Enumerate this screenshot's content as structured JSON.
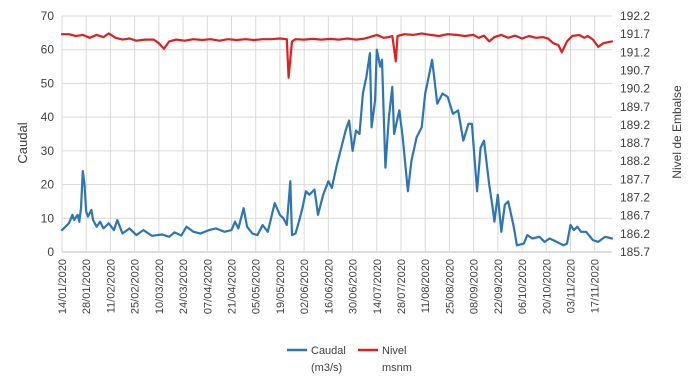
{
  "chart_data": {
    "type": "line",
    "title": "",
    "ylabel": "Caudal",
    "y2label": "Nivel de Embalse",
    "xlabel": "",
    "ylim": [
      0,
      70
    ],
    "y2lim": [
      185.7,
      192.2
    ],
    "yticks": [
      0,
      10,
      20,
      30,
      40,
      50,
      60,
      70
    ],
    "y2ticks": [
      "185.7",
      "186.2",
      "186.7",
      "187.2",
      "187.7",
      "188.2",
      "188.7",
      "189.2",
      "189.7",
      "190.2",
      "190.7",
      "191.2",
      "191.7",
      "192.2"
    ],
    "xlim": [
      "2020-01-14",
      "2020-11-27"
    ],
    "xticks": [
      "14/01/2020",
      "28/01/2020",
      "11/02/2020",
      "25/02/2020",
      "10/03/2020",
      "24/03/2020",
      "07/04/2020",
      "21/04/2020",
      "05/05/2020",
      "19/05/2020",
      "02/06/2020",
      "16/06/2020",
      "30/06/2020",
      "14/07/2020",
      "28/07/2020",
      "11/08/2020",
      "25/08/2020",
      "08/09/2020",
      "22/09/2020",
      "06/10/2020",
      "20/10/2020",
      "03/11/2020",
      "17/11/2020"
    ],
    "grid": true,
    "legend_position": "bottom",
    "series": [
      {
        "name": "Caudal (m3/s)",
        "legend_line1": "Caudal",
        "legend_line2": "(m3/s)",
        "axis": "left",
        "color": "#2e75b6",
        "points": [
          [
            "2020-01-14",
            6.5
          ],
          [
            "2020-01-16",
            7.5
          ],
          [
            "2020-01-18",
            8.5
          ],
          [
            "2020-01-20",
            11
          ],
          [
            "2020-01-21",
            9.5
          ],
          [
            "2020-01-23",
            11
          ],
          [
            "2020-01-24",
            9
          ],
          [
            "2020-01-25",
            13
          ],
          [
            "2020-01-26",
            24
          ],
          [
            "2020-01-27",
            20
          ],
          [
            "2020-01-28",
            12
          ],
          [
            "2020-01-29",
            10.5
          ],
          [
            "2020-01-31",
            12.5
          ],
          [
            "2020-02-01",
            9.5
          ],
          [
            "2020-02-03",
            7.5
          ],
          [
            "2020-02-05",
            9
          ],
          [
            "2020-02-07",
            7
          ],
          [
            "2020-02-10",
            8.5
          ],
          [
            "2020-02-13",
            6.5
          ],
          [
            "2020-02-15",
            9.5
          ],
          [
            "2020-02-18",
            5.5
          ],
          [
            "2020-02-22",
            7
          ],
          [
            "2020-02-26",
            5
          ],
          [
            "2020-03-01",
            6.5
          ],
          [
            "2020-03-06",
            4.8
          ],
          [
            "2020-03-12",
            5.2
          ],
          [
            "2020-03-16",
            4.5
          ],
          [
            "2020-03-19",
            5.8
          ],
          [
            "2020-03-23",
            4.9
          ],
          [
            "2020-03-26",
            7.5
          ],
          [
            "2020-03-30",
            6
          ],
          [
            "2020-04-03",
            5.5
          ],
          [
            "2020-04-08",
            6.5
          ],
          [
            "2020-04-12",
            7
          ],
          [
            "2020-04-17",
            6
          ],
          [
            "2020-04-21",
            6.5
          ],
          [
            "2020-04-23",
            9
          ],
          [
            "2020-04-25",
            7
          ],
          [
            "2020-04-28",
            13
          ],
          [
            "2020-04-30",
            7.5
          ],
          [
            "2020-05-03",
            5.5
          ],
          [
            "2020-05-06",
            5
          ],
          [
            "2020-05-09",
            8
          ],
          [
            "2020-05-12",
            6
          ],
          [
            "2020-05-16",
            14.5
          ],
          [
            "2020-05-19",
            11
          ],
          [
            "2020-05-21",
            10
          ],
          [
            "2020-05-23",
            8
          ],
          [
            "2020-05-25",
            21
          ],
          [
            "2020-05-26",
            5
          ],
          [
            "2020-05-28",
            5.5
          ],
          [
            "2020-05-30",
            9
          ],
          [
            "2020-06-01",
            13
          ],
          [
            "2020-06-03",
            18
          ],
          [
            "2020-06-05",
            17
          ],
          [
            "2020-06-08",
            18.5
          ],
          [
            "2020-06-10",
            11
          ],
          [
            "2020-06-13",
            17
          ],
          [
            "2020-06-16",
            21
          ],
          [
            "2020-06-18",
            19
          ],
          [
            "2020-06-21",
            26
          ],
          [
            "2020-06-24",
            32
          ],
          [
            "2020-06-26",
            36
          ],
          [
            "2020-06-28",
            39
          ],
          [
            "2020-06-30",
            30
          ],
          [
            "2020-07-02",
            36
          ],
          [
            "2020-07-04",
            35
          ],
          [
            "2020-07-06",
            47
          ],
          [
            "2020-07-08",
            52
          ],
          [
            "2020-07-10",
            59
          ],
          [
            "2020-07-11",
            37
          ],
          [
            "2020-07-13",
            45
          ],
          [
            "2020-07-14",
            60
          ],
          [
            "2020-07-16",
            55
          ],
          [
            "2020-07-17",
            57
          ],
          [
            "2020-07-19",
            25
          ],
          [
            "2020-07-21",
            40
          ],
          [
            "2020-07-23",
            49
          ],
          [
            "2020-07-24",
            35
          ],
          [
            "2020-07-27",
            42
          ],
          [
            "2020-07-29",
            34
          ],
          [
            "2020-08-01",
            18
          ],
          [
            "2020-08-03",
            27
          ],
          [
            "2020-08-06",
            34
          ],
          [
            "2020-08-09",
            37
          ],
          [
            "2020-08-11",
            47
          ],
          [
            "2020-08-13",
            52
          ],
          [
            "2020-08-15",
            57
          ],
          [
            "2020-08-18",
            44
          ],
          [
            "2020-08-21",
            47
          ],
          [
            "2020-08-24",
            46
          ],
          [
            "2020-08-27",
            41
          ],
          [
            "2020-08-30",
            42
          ],
          [
            "2020-09-02",
            33
          ],
          [
            "2020-09-05",
            38
          ],
          [
            "2020-09-07",
            38
          ],
          [
            "2020-09-10",
            18
          ],
          [
            "2020-09-12",
            31
          ],
          [
            "2020-09-14",
            33
          ],
          [
            "2020-09-17",
            20
          ],
          [
            "2020-09-19",
            13
          ],
          [
            "2020-09-20",
            9
          ],
          [
            "2020-09-22",
            17
          ],
          [
            "2020-09-24",
            6
          ],
          [
            "2020-09-26",
            14
          ],
          [
            "2020-09-28",
            15
          ],
          [
            "2020-10-01",
            8
          ],
          [
            "2020-10-03",
            2
          ],
          [
            "2020-10-07",
            2.5
          ],
          [
            "2020-10-09",
            5
          ],
          [
            "2020-10-12",
            4
          ],
          [
            "2020-10-16",
            4.5
          ],
          [
            "2020-10-19",
            3
          ],
          [
            "2020-10-22",
            4
          ],
          [
            "2020-10-26",
            3
          ],
          [
            "2020-10-30",
            2
          ],
          [
            "2020-11-01",
            2.5
          ],
          [
            "2020-11-03",
            8
          ],
          [
            "2020-11-05",
            6.5
          ],
          [
            "2020-11-07",
            7.5
          ],
          [
            "2020-11-09",
            6
          ],
          [
            "2020-11-12",
            6
          ],
          [
            "2020-11-16",
            3.5
          ],
          [
            "2020-11-19",
            3
          ],
          [
            "2020-11-23",
            4.5
          ],
          [
            "2020-11-27",
            4
          ]
        ]
      },
      {
        "name": "Nivel msnm",
        "legend_line1": "Nivel",
        "legend_line2": "msnm",
        "axis": "right",
        "color": "#e02020",
        "points": [
          [
            "2020-01-14",
            191.7
          ],
          [
            "2020-01-18",
            191.7
          ],
          [
            "2020-01-22",
            191.65
          ],
          [
            "2020-01-26",
            191.68
          ],
          [
            "2020-01-30",
            191.6
          ],
          [
            "2020-02-03",
            191.68
          ],
          [
            "2020-02-07",
            191.62
          ],
          [
            "2020-02-10",
            191.72
          ],
          [
            "2020-02-14",
            191.6
          ],
          [
            "2020-02-18",
            191.55
          ],
          [
            "2020-02-22",
            191.58
          ],
          [
            "2020-02-26",
            191.52
          ],
          [
            "2020-03-02",
            191.55
          ],
          [
            "2020-03-07",
            191.55
          ],
          [
            "2020-03-10",
            191.45
          ],
          [
            "2020-03-13",
            191.3
          ],
          [
            "2020-03-16",
            191.5
          ],
          [
            "2020-03-20",
            191.55
          ],
          [
            "2020-03-25",
            191.52
          ],
          [
            "2020-03-30",
            191.56
          ],
          [
            "2020-04-04",
            191.54
          ],
          [
            "2020-04-09",
            191.56
          ],
          [
            "2020-04-14",
            191.52
          ],
          [
            "2020-04-19",
            191.56
          ],
          [
            "2020-04-24",
            191.54
          ],
          [
            "2020-04-29",
            191.56
          ],
          [
            "2020-05-04",
            191.54
          ],
          [
            "2020-05-09",
            191.56
          ],
          [
            "2020-05-14",
            191.56
          ],
          [
            "2020-05-19",
            191.58
          ],
          [
            "2020-05-23",
            191.56
          ],
          [
            "2020-05-24",
            190.5
          ],
          [
            "2020-05-26",
            191.5
          ],
          [
            "2020-05-28",
            191.56
          ],
          [
            "2020-06-02",
            191.55
          ],
          [
            "2020-06-07",
            191.57
          ],
          [
            "2020-06-12",
            191.55
          ],
          [
            "2020-06-17",
            191.57
          ],
          [
            "2020-06-22",
            191.55
          ],
          [
            "2020-06-27",
            191.58
          ],
          [
            "2020-07-02",
            191.55
          ],
          [
            "2020-07-06",
            191.57
          ],
          [
            "2020-07-10",
            191.62
          ],
          [
            "2020-07-14",
            191.68
          ],
          [
            "2020-07-18",
            191.6
          ],
          [
            "2020-07-21",
            191.62
          ],
          [
            "2020-07-23",
            191.65
          ],
          [
            "2020-07-25",
            190.95
          ],
          [
            "2020-07-26",
            191.65
          ],
          [
            "2020-07-30",
            191.7
          ],
          [
            "2020-08-04",
            191.68
          ],
          [
            "2020-08-09",
            191.72
          ],
          [
            "2020-08-14",
            191.68
          ],
          [
            "2020-08-19",
            191.65
          ],
          [
            "2020-08-24",
            191.7
          ],
          [
            "2020-08-29",
            191.68
          ],
          [
            "2020-09-03",
            191.65
          ],
          [
            "2020-09-08",
            191.68
          ],
          [
            "2020-09-11",
            191.6
          ],
          [
            "2020-09-14",
            191.66
          ],
          [
            "2020-09-17",
            191.5
          ],
          [
            "2020-09-20",
            191.62
          ],
          [
            "2020-09-24",
            191.68
          ],
          [
            "2020-09-28",
            191.6
          ],
          [
            "2020-10-02",
            191.66
          ],
          [
            "2020-10-06",
            191.58
          ],
          [
            "2020-10-10",
            191.65
          ],
          [
            "2020-10-14",
            191.6
          ],
          [
            "2020-10-18",
            191.62
          ],
          [
            "2020-10-21",
            191.58
          ],
          [
            "2020-10-24",
            191.45
          ],
          [
            "2020-10-27",
            191.4
          ],
          [
            "2020-10-29",
            191.2
          ],
          [
            "2020-11-01",
            191.5
          ],
          [
            "2020-11-04",
            191.65
          ],
          [
            "2020-11-08",
            191.68
          ],
          [
            "2020-11-11",
            191.6
          ],
          [
            "2020-11-13",
            191.65
          ],
          [
            "2020-11-16",
            191.55
          ],
          [
            "2020-11-19",
            191.35
          ],
          [
            "2020-11-22",
            191.45
          ],
          [
            "2020-11-25",
            191.48
          ],
          [
            "2020-11-27",
            191.5
          ]
        ]
      }
    ]
  }
}
